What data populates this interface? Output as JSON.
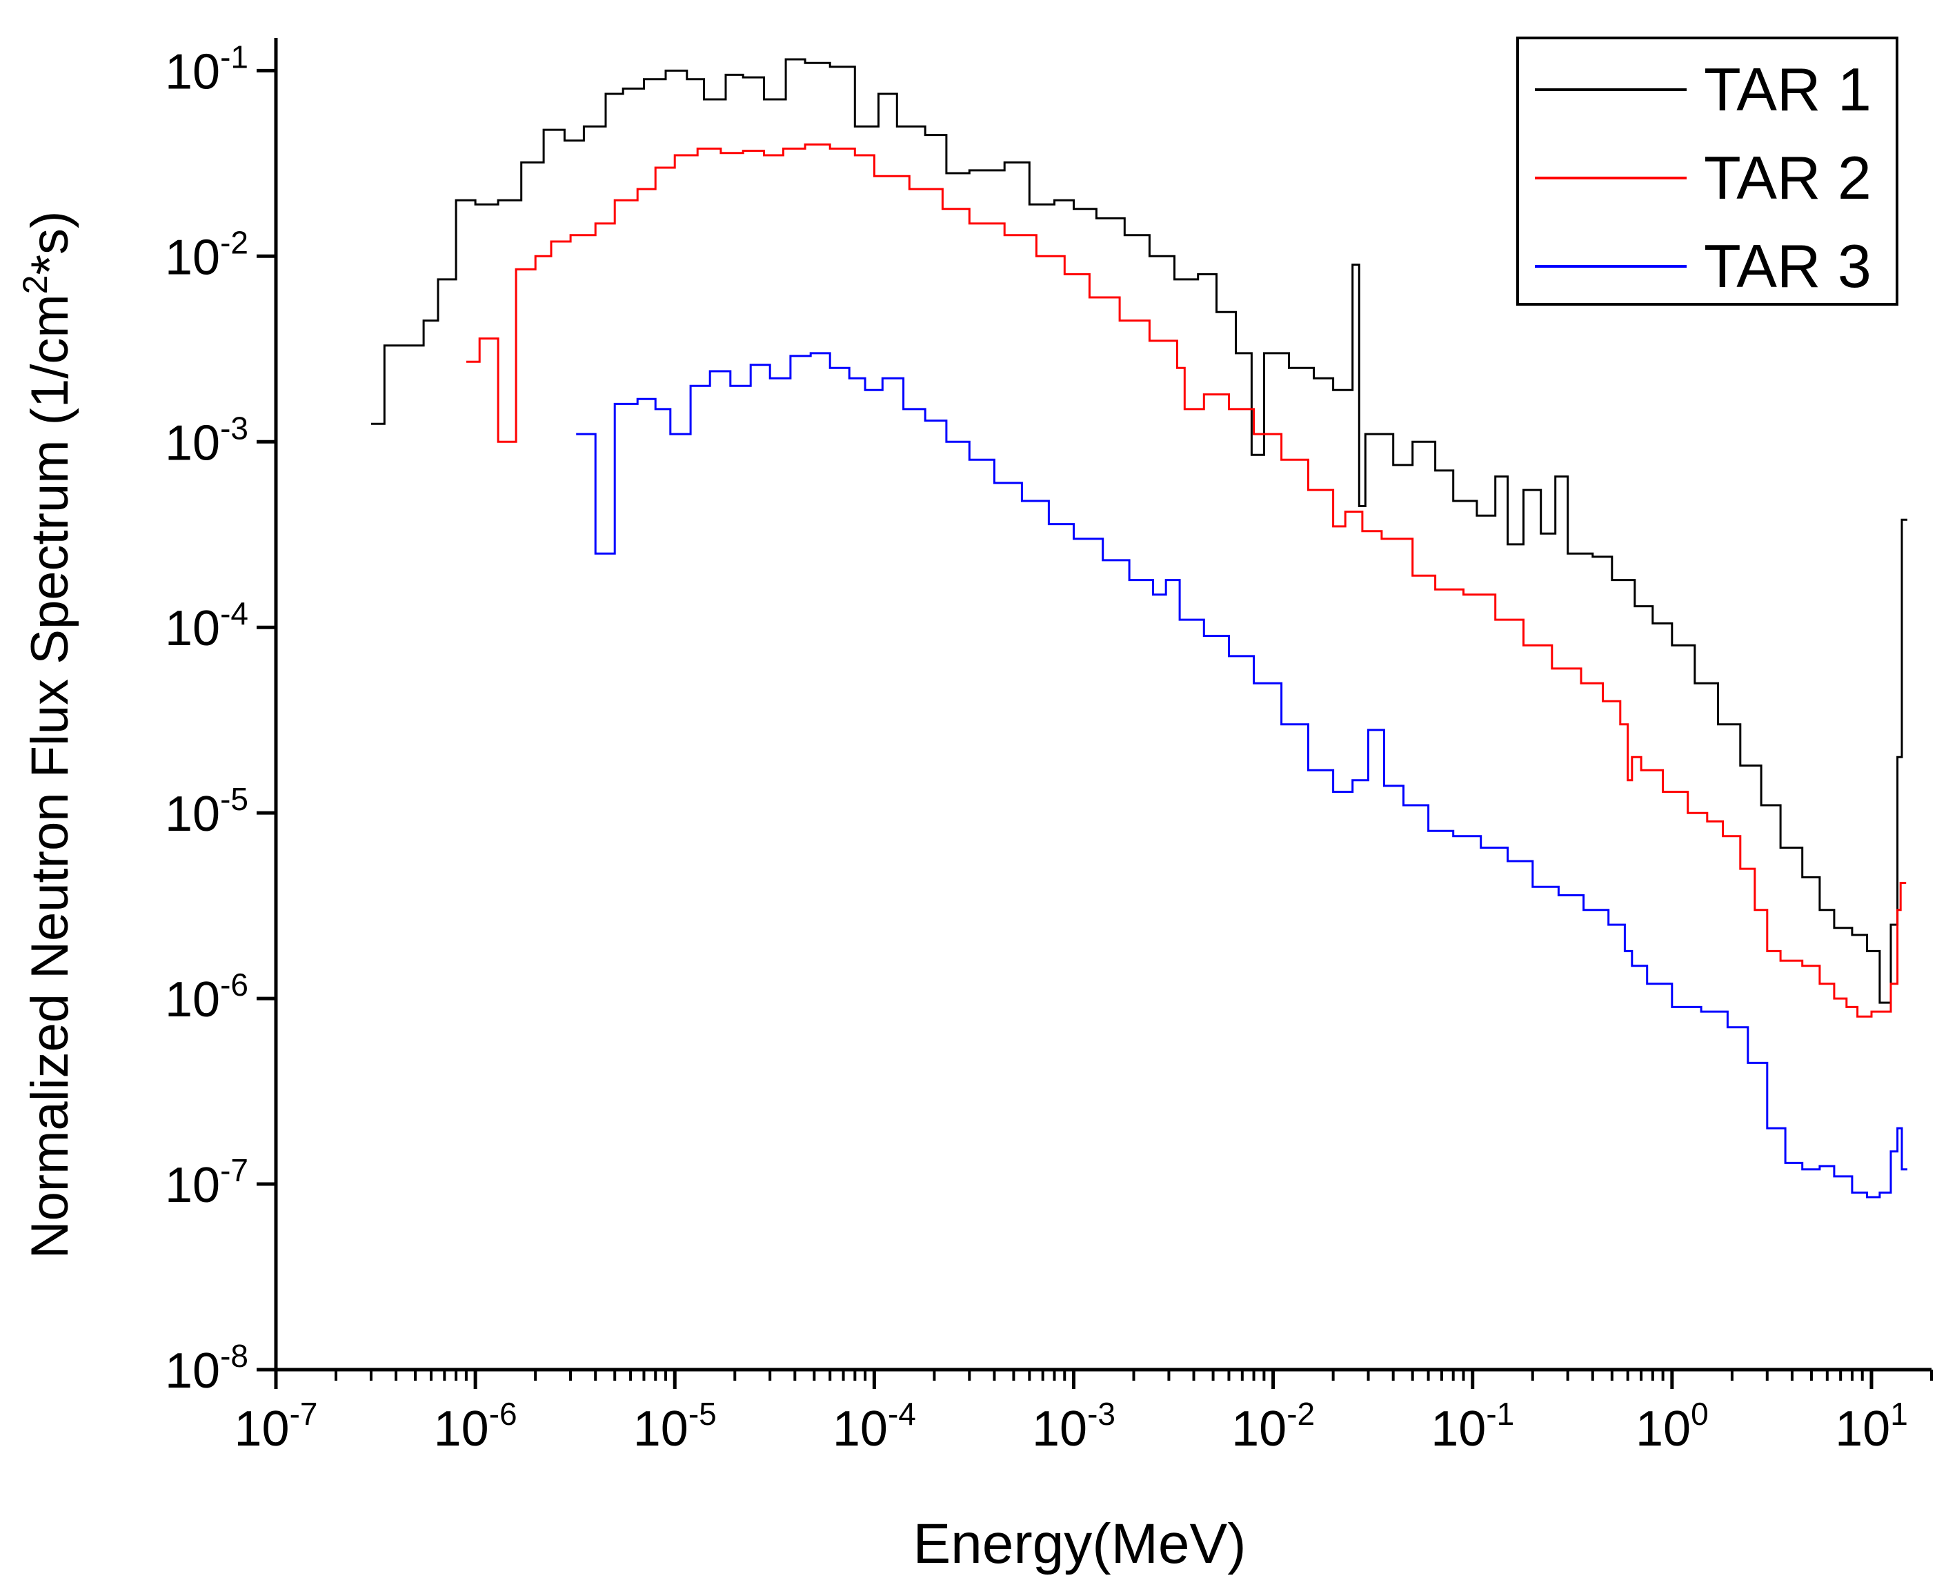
{
  "chart_data": {
    "type": "line",
    "step": true,
    "title": "",
    "xlabel": "Energy(MeV)",
    "ylabel": "Normalized Neutron Flux Spectrum (1/cm",
    "ylabel_sup": "2",
    "ylabel_tail": "*s)",
    "xscale": "log",
    "yscale": "log",
    "xlim": [
      1e-07,
      20
    ],
    "ylim": [
      1e-08,
      0.15
    ],
    "grid": false,
    "legend_position": "top-right",
    "x_ticks": [
      {
        "value": 1e-07,
        "base": "10",
        "exp": "-7"
      },
      {
        "value": 1e-06,
        "base": "10",
        "exp": "-6"
      },
      {
        "value": 1e-05,
        "base": "10",
        "exp": "-5"
      },
      {
        "value": 0.0001,
        "base": "10",
        "exp": "-4"
      },
      {
        "value": 0.001,
        "base": "10",
        "exp": "-3"
      },
      {
        "value": 0.01,
        "base": "10",
        "exp": "-2"
      },
      {
        "value": 0.1,
        "base": "10",
        "exp": "-1"
      },
      {
        "value": 1,
        "base": "10",
        "exp": "0"
      },
      {
        "value": 10,
        "base": "10",
        "exp": "1"
      }
    ],
    "y_ticks": [
      {
        "value": 1e-08,
        "base": "10",
        "exp": "-8"
      },
      {
        "value": 1e-07,
        "base": "10",
        "exp": "-7"
      },
      {
        "value": 1e-06,
        "base": "10",
        "exp": "-6"
      },
      {
        "value": 1e-05,
        "base": "10",
        "exp": "-5"
      },
      {
        "value": 0.0001,
        "base": "10",
        "exp": "-4"
      },
      {
        "value": 0.001,
        "base": "10",
        "exp": "-3"
      },
      {
        "value": 0.01,
        "base": "10",
        "exp": "-2"
      },
      {
        "value": 0.1,
        "base": "10",
        "exp": "-1"
      }
    ],
    "series": [
      {
        "name": "TAR 1",
        "color": "#000000",
        "x": [
          3e-07,
          3.5e-07,
          5.5e-07,
          6.5e-07,
          8e-07,
          1e-06,
          1.3e-06,
          1.7e-06,
          2.2e-06,
          2.8e-06,
          3.5e-06,
          4.5e-06,
          5.5e-06,
          7e-06,
          9e-06,
          1.15e-05,
          1.4e-05,
          1.8e-05,
          2.2e-05,
          2.8e-05,
          3.6e-05,
          4.5e-05,
          6e-05,
          8e-05,
          0.000105,
          0.00013,
          0.00018,
          0.00023,
          0.0003,
          0.00045,
          0.0006,
          0.0008,
          0.001,
          0.0013,
          0.0018,
          0.0024,
          0.0032,
          0.0042,
          0.0052,
          0.0065,
          0.0078,
          0.009,
          0.012,
          0.016,
          0.02,
          0.025,
          0.027,
          0.029,
          0.032,
          0.04,
          0.05,
          0.065,
          0.08,
          0.105,
          0.13,
          0.15,
          0.18,
          0.22,
          0.26,
          0.3,
          0.35,
          0.4,
          0.5,
          0.65,
          0.8,
          1.0,
          1.3,
          1.7,
          2.2,
          2.8,
          3.5,
          4.5,
          5.5,
          6.5,
          8.0,
          9.5,
          11.0,
          12.5,
          13.5,
          14.2
        ],
        "y": [
          0.00125,
          0.0033,
          0.0045,
          0.0075,
          0.02,
          0.019,
          0.02,
          0.032,
          0.048,
          0.042,
          0.05,
          0.075,
          0.08,
          0.09,
          0.1,
          0.09,
          0.07,
          0.095,
          0.092,
          0.07,
          0.115,
          0.11,
          0.105,
          0.05,
          0.075,
          0.05,
          0.045,
          0.028,
          0.029,
          0.032,
          0.019,
          0.02,
          0.018,
          0.016,
          0.013,
          0.01,
          0.0075,
          0.008,
          0.005,
          0.003,
          0.00085,
          0.003,
          0.0025,
          0.0022,
          0.0019,
          0.009,
          0.00045,
          0.0011,
          0.0011,
          0.00075,
          0.001,
          0.0007,
          0.00048,
          0.0004,
          0.00065,
          0.00028,
          0.00055,
          0.00032,
          0.00065,
          0.00025,
          0.00025,
          0.00024,
          0.00018,
          0.00013,
          0.000105,
          8e-05,
          5e-05,
          3e-05,
          1.8e-05,
          1.1e-05,
          6.5e-06,
          4.5e-06,
          3e-06,
          2.4e-06,
          2.2e-06,
          1.8e-06,
          9.5e-07,
          2.5e-06,
          2e-05,
          0.00038
        ]
      },
      {
        "name": "TAR 2",
        "color": "#ff0000",
        "x": [
          9e-07,
          1.05e-06,
          1.3e-06,
          1.6e-06,
          2e-06,
          2.4e-06,
          3e-06,
          4e-06,
          5e-06,
          6.5e-06,
          8e-06,
          1e-05,
          1.3e-05,
          1.7e-05,
          2.2e-05,
          2.8e-05,
          3.5e-05,
          4.5e-05,
          6e-05,
          8e-05,
          0.0001,
          0.00015,
          0.00022,
          0.0003,
          0.00045,
          0.00065,
          0.0009,
          0.0012,
          0.0017,
          0.0024,
          0.0033,
          0.0036,
          0.0045,
          0.006,
          0.008,
          0.011,
          0.015,
          0.02,
          0.023,
          0.028,
          0.035,
          0.05,
          0.065,
          0.09,
          0.13,
          0.18,
          0.25,
          0.35,
          0.45,
          0.55,
          0.6,
          0.63,
          0.7,
          0.9,
          1.2,
          1.5,
          1.8,
          2.2,
          2.6,
          3.0,
          3.5,
          4.5,
          5.5,
          6.5,
          7.5,
          8.5,
          10.0,
          11.5,
          12.5,
          13.5,
          14.0
        ],
        "y": [
          0.0027,
          0.0036,
          0.001,
          0.0085,
          0.01,
          0.012,
          0.013,
          0.015,
          0.02,
          0.023,
          0.03,
          0.035,
          0.038,
          0.036,
          0.037,
          0.035,
          0.038,
          0.04,
          0.038,
          0.035,
          0.027,
          0.023,
          0.018,
          0.015,
          0.013,
          0.01,
          0.008,
          0.006,
          0.0045,
          0.0035,
          0.0025,
          0.0015,
          0.0018,
          0.0015,
          0.0011,
          0.0008,
          0.00055,
          0.00035,
          0.00042,
          0.00033,
          0.0003,
          0.00019,
          0.00016,
          0.00015,
          0.00011,
          8e-05,
          6e-05,
          5e-05,
          4e-05,
          3e-05,
          1.5e-05,
          2e-05,
          1.7e-05,
          1.3e-05,
          1e-05,
          9e-06,
          7.5e-06,
          5e-06,
          3e-06,
          1.8e-06,
          1.6e-06,
          1.5e-06,
          1.2e-06,
          1e-06,
          9e-07,
          8e-07,
          8.5e-07,
          8.5e-07,
          1.2e-06,
          3e-06,
          4.2e-06
        ]
      },
      {
        "name": "TAR 3",
        "color": "#0000ff",
        "x": [
          3.2e-06,
          4e-06,
          5e-06,
          6.5e-06,
          8e-06,
          9.5e-06,
          1.2e-05,
          1.5e-05,
          1.9e-05,
          2.4e-05,
          3e-05,
          3.8e-05,
          4.8e-05,
          6e-05,
          7.5e-05,
          9e-05,
          0.00011,
          0.00014,
          0.00018,
          0.00023,
          0.0003,
          0.0004,
          0.00055,
          0.00075,
          0.001,
          0.0014,
          0.0019,
          0.0025,
          0.0029,
          0.0034,
          0.0045,
          0.006,
          0.008,
          0.011,
          0.015,
          0.02,
          0.025,
          0.03,
          0.036,
          0.045,
          0.06,
          0.08,
          0.11,
          0.15,
          0.2,
          0.27,
          0.36,
          0.48,
          0.58,
          0.63,
          0.75,
          1.0,
          1.4,
          1.9,
          2.4,
          3.0,
          3.7,
          4.5,
          5.5,
          6.5,
          8.0,
          9.5,
          11.0,
          12.5,
          13.5,
          14.2
        ],
        "y": [
          0.0011,
          0.00025,
          0.0016,
          0.0017,
          0.0015,
          0.0011,
          0.002,
          0.0024,
          0.002,
          0.0026,
          0.0022,
          0.0029,
          0.003,
          0.0025,
          0.0022,
          0.0019,
          0.0022,
          0.0015,
          0.0013,
          0.001,
          0.0008,
          0.0006,
          0.00048,
          0.00036,
          0.0003,
          0.00023,
          0.00018,
          0.00015,
          0.00018,
          0.00011,
          9e-05,
          7e-05,
          5e-05,
          3e-05,
          1.7e-05,
          1.3e-05,
          1.5e-05,
          2.8e-05,
          1.4e-05,
          1.1e-05,
          8e-06,
          7.5e-06,
          6.5e-06,
          5.5e-06,
          4e-06,
          3.6e-06,
          3e-06,
          2.5e-06,
          1.8e-06,
          1.5e-06,
          1.2e-06,
          9e-07,
          8.5e-07,
          7e-07,
          4.5e-07,
          2e-07,
          1.3e-07,
          1.2e-07,
          1.25e-07,
          1.1e-07,
          9e-08,
          8.5e-08,
          9e-08,
          1.5e-07,
          2e-07,
          1.2e-07
        ]
      }
    ]
  }
}
